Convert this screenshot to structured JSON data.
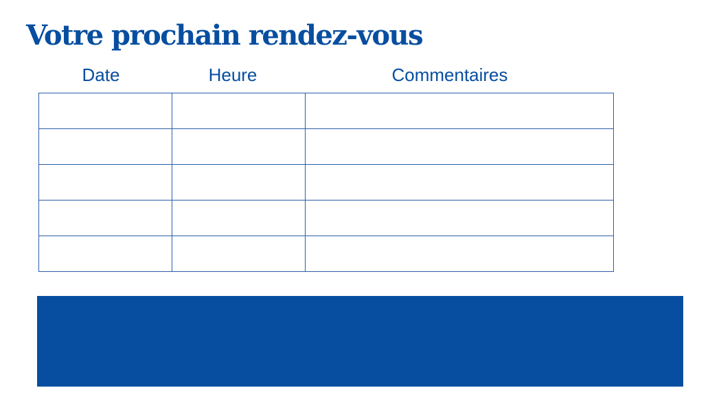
{
  "title": "Votre prochain rendez-vous",
  "table": {
    "headers": [
      "Date",
      "Heure",
      "Commentaires"
    ],
    "rows": [
      [
        "",
        "",
        ""
      ],
      [
        "",
        "",
        ""
      ],
      [
        "",
        "",
        ""
      ],
      [
        "",
        "",
        ""
      ],
      [
        "",
        "",
        ""
      ]
    ]
  },
  "colors": {
    "brand": "#074ea0"
  }
}
